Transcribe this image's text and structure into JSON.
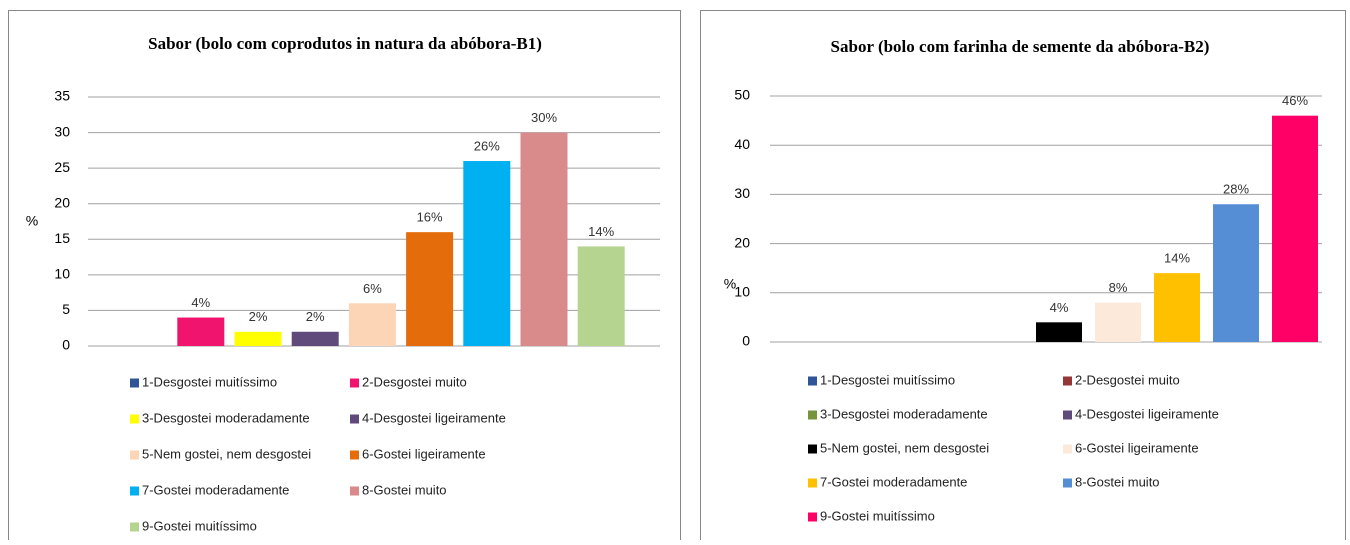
{
  "chart_data": [
    {
      "type": "bar",
      "title": "Sabor (bolo com coprodutos in natura da abóbora-B1)",
      "y_label": "%",
      "categories": [
        "1-Desgostei muitíssimo",
        "2-Desgostei muito",
        "3-Desgostei moderadamente",
        "4-Desgostei ligeiramente",
        "5-Nem gostei, nem desgostei",
        "6-Gostei ligeiramente",
        "7-Gostei moderadamente",
        "8-Gostei muito",
        "9-Gostei muitíssimo"
      ],
      "colors": [
        "#2f5597",
        "#f0146e",
        "#ffff00",
        "#604a7b",
        "#fbd5b5",
        "#e46c0a",
        "#00b0f0",
        "#d98a8a",
        "#b5d48f"
      ],
      "values": [
        null,
        4,
        2,
        2,
        6,
        16,
        26,
        30,
        14
      ],
      "value_labels": [
        null,
        "4%",
        "2%",
        "2%",
        "6%",
        "16%",
        "26%",
        "30%",
        "14%"
      ],
      "ylim": [
        0,
        35
      ],
      "yticks": [
        0,
        5,
        10,
        15,
        20,
        25,
        30,
        35
      ],
      "grid": true
    },
    {
      "type": "bar",
      "title": "Sabor (bolo com farinha de semente da abóbora-B2)",
      "y_label": "%",
      "categories": [
        "1-Desgostei muitíssimo",
        "2-Desgostei muito",
        "3-Desgostei moderadamente",
        "4-Desgostei ligeiramente",
        "5-Nem gostei, nem desgostei",
        "6-Gostei ligeiramente",
        "7-Gostei moderadamente",
        "8-Gostei muito",
        "9-Gostei muitíssimo"
      ],
      "colors": [
        "#2f5597",
        "#953735",
        "#77933c",
        "#604a7b",
        "#000000",
        "#fde9d9",
        "#ffc000",
        "#558ed5",
        "#ff0066"
      ],
      "values": [
        null,
        null,
        null,
        null,
        4,
        8,
        14,
        28,
        46
      ],
      "value_labels": [
        null,
        null,
        null,
        null,
        "4%",
        "8%",
        "14%",
        "28%",
        "46%"
      ],
      "ylim": [
        0,
        50
      ],
      "yticks": [
        0,
        10,
        20,
        30,
        40,
        50
      ],
      "grid": true
    }
  ]
}
